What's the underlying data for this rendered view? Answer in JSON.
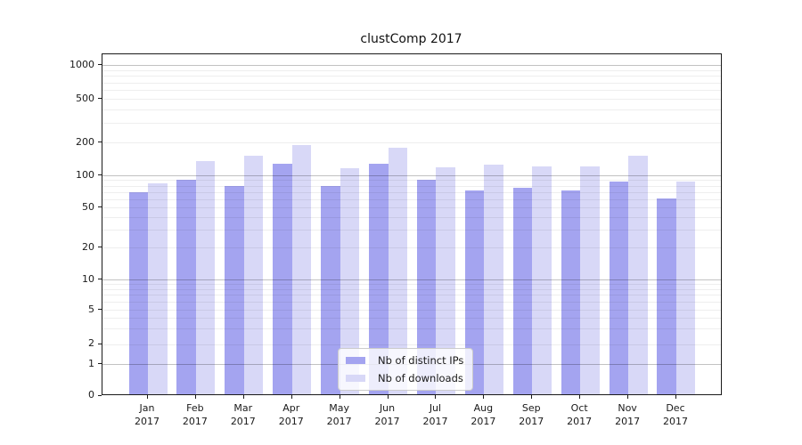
{
  "chart_data": {
    "type": "bar",
    "title": "clustComp 2017",
    "categories": [
      "Jan",
      "Feb",
      "Mar",
      "Apr",
      "May",
      "Jun",
      "Jul",
      "Aug",
      "Sep",
      "Oct",
      "Nov",
      "Dec"
    ],
    "x_year": "2017",
    "series": [
      {
        "name": "Nb of distinct IPs",
        "color": "#a4a4f0",
        "values": [
          70,
          91,
          79,
          128,
          80,
          128,
          91,
          72,
          76,
          72,
          87,
          61
        ]
      },
      {
        "name": "Nb of downloads",
        "color": "#d8d8f7",
        "values": [
          84,
          135,
          152,
          190,
          117,
          179,
          118,
          126,
          121,
          121,
          150,
          87
        ]
      }
    ],
    "yscale": "symlog",
    "yticks": [
      0,
      1,
      2,
      5,
      10,
      20,
      50,
      100,
      200,
      500,
      1000
    ],
    "ylim": [
      0,
      1270
    ],
    "grid": true,
    "legend_position": "lower center",
    "colors": {
      "spine": "#1a1a1a",
      "major_grid": "#c2c2c2",
      "minor_grid": "#ececec",
      "background": "#ffffff"
    }
  }
}
